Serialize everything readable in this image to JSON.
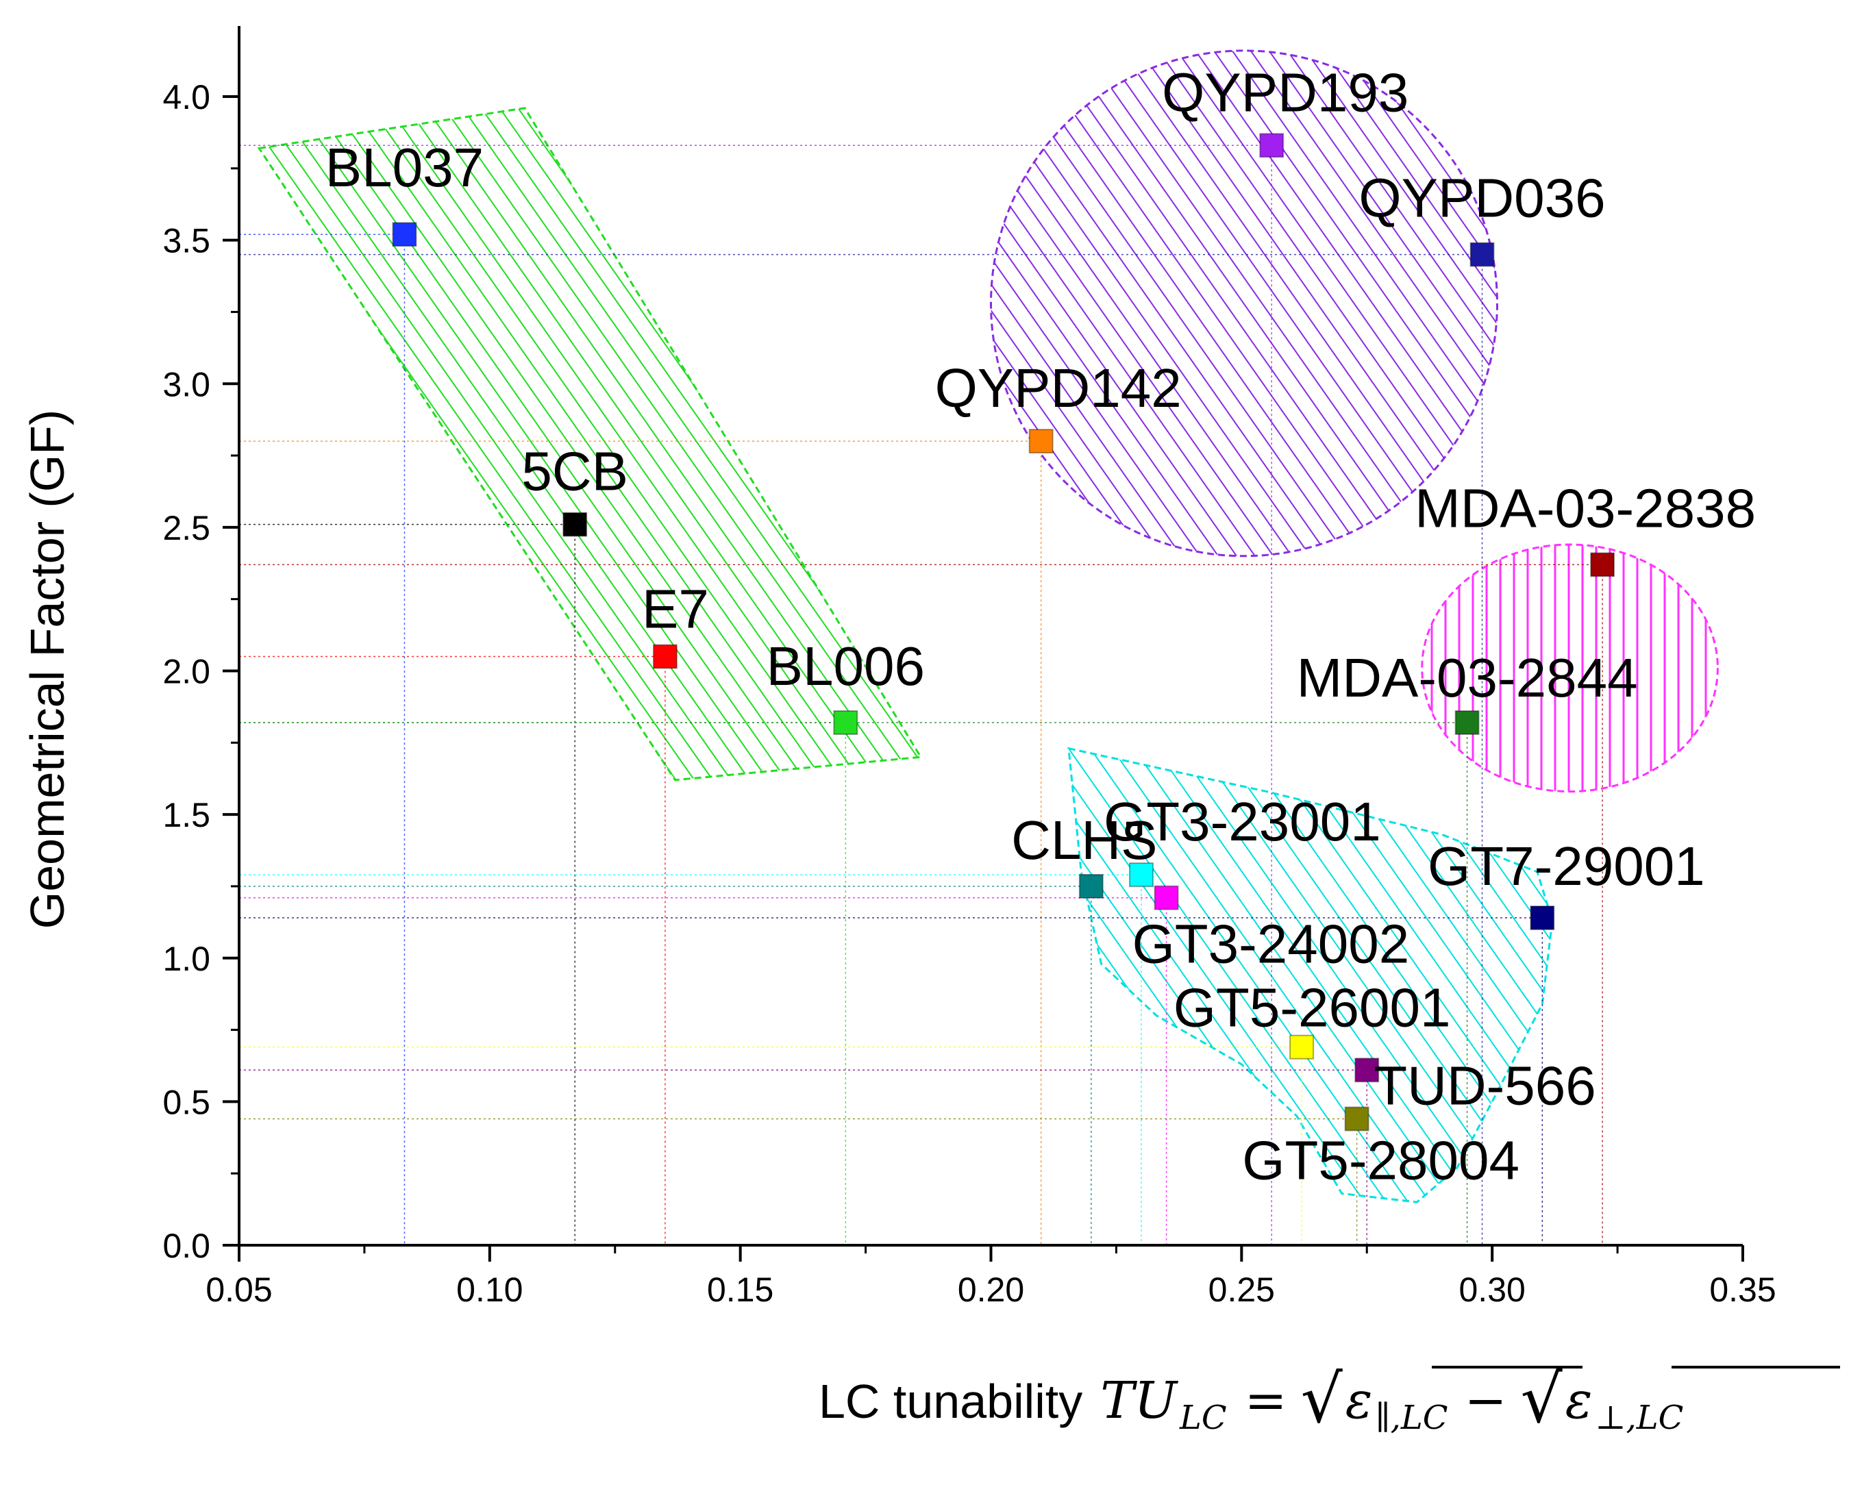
{
  "chart_data": {
    "type": "scatter",
    "xlabel_prefix": "LC tunability",
    "xlabel_math": {
      "lhs": "TU",
      "lhs_sub": "LC",
      "equals": "=",
      "minus": "−",
      "term1": "ε",
      "term1_sub": "∥,LC",
      "term2": "ε",
      "term2_sub": "⊥,LC"
    },
    "ylabel": "Geometrical Factor (GF)",
    "xlim": [
      0.05,
      0.35
    ],
    "ylim": [
      0.0,
      4.25
    ],
    "xticks": [
      "0.05",
      "0.10",
      "0.15",
      "0.20",
      "0.25",
      "0.30",
      "0.35"
    ],
    "yticks": [
      "0.0",
      "0.5",
      "1.0",
      "1.5",
      "2.0",
      "2.5",
      "3.0",
      "3.5",
      "4.0"
    ],
    "points": [
      {
        "name": "BL037",
        "x": 0.083,
        "y": 3.52,
        "color": "#1a33ff"
      },
      {
        "name": "5CB",
        "x": 0.117,
        "y": 2.51,
        "color": "#000000"
      },
      {
        "name": "E7",
        "x": 0.135,
        "y": 2.05,
        "color": "#ff0000"
      },
      {
        "name": "BL006",
        "x": 0.171,
        "y": 1.82,
        "color": "#22dd22"
      },
      {
        "name": "QYPD142",
        "x": 0.21,
        "y": 2.8,
        "color": "#ff8000"
      },
      {
        "name": "QYPD193",
        "x": 0.256,
        "y": 3.83,
        "color": "#a020f0"
      },
      {
        "name": "QYPD036",
        "x": 0.298,
        "y": 3.45,
        "color": "#1a1aa0"
      },
      {
        "name": "MDA-03-2838",
        "x": 0.322,
        "y": 2.37,
        "color": "#a00000"
      },
      {
        "name": "MDA-03-2844",
        "x": 0.295,
        "y": 1.82,
        "color": "#1a7a1a"
      },
      {
        "name": "CLHS",
        "x": 0.22,
        "y": 1.25,
        "color": "#008080"
      },
      {
        "name": "GT3-23001",
        "x": 0.23,
        "y": 1.29,
        "color": "#00ffff"
      },
      {
        "name": "GT3-24002",
        "x": 0.235,
        "y": 1.21,
        "color": "#ff00ff"
      },
      {
        "name": "GT7-29001",
        "x": 0.31,
        "y": 1.14,
        "color": "#000080"
      },
      {
        "name": "GT5-26001",
        "x": 0.262,
        "y": 0.69,
        "color": "#ffff00"
      },
      {
        "name": "TUD-566",
        "x": 0.275,
        "y": 0.61,
        "color": "#800080"
      },
      {
        "name": "GT5-28004",
        "x": 0.273,
        "y": 0.44,
        "color": "#808000"
      }
    ],
    "regions": [
      {
        "name": "green-region",
        "shape": "polygon",
        "color": "#22dd22",
        "hatch": "diagonal",
        "vertices": [
          [
            0.054,
            3.82
          ],
          [
            0.107,
            3.96
          ],
          [
            0.186,
            1.7
          ],
          [
            0.137,
            1.62
          ]
        ]
      },
      {
        "name": "purple-region",
        "shape": "ellipse",
        "color": "#8a2be2",
        "hatch": "diagonal",
        "center": [
          0.2505,
          3.28
        ],
        "radii": [
          0.0505,
          0.88
        ]
      },
      {
        "name": "magenta-region",
        "shape": "ellipse",
        "color": "#ff33ff",
        "hatch": "vertical",
        "center": [
          0.3155,
          2.01
        ],
        "radii": [
          0.0295,
          0.43
        ]
      },
      {
        "name": "cyan-region",
        "shape": "polygon",
        "color": "#00e0e0",
        "hatch": "diagonal",
        "vertices": [
          [
            0.2155,
            1.73
          ],
          [
            0.255,
            1.58
          ],
          [
            0.29,
            1.43
          ],
          [
            0.309,
            1.3
          ],
          [
            0.312,
            1.13
          ],
          [
            0.31,
            0.84
          ],
          [
            0.3,
            0.5
          ],
          [
            0.293,
            0.27
          ],
          [
            0.285,
            0.15
          ],
          [
            0.27,
            0.18
          ],
          [
            0.261,
            0.45
          ],
          [
            0.25,
            0.63
          ],
          [
            0.233,
            0.8
          ],
          [
            0.222,
            0.98
          ],
          [
            0.218,
            1.3
          ],
          [
            0.2155,
            1.73
          ]
        ]
      }
    ]
  }
}
